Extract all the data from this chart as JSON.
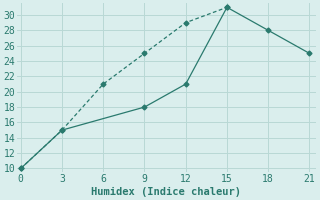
{
  "line1_x": [
    0,
    3,
    6,
    9,
    12,
    15
  ],
  "line1_y": [
    10,
    15,
    21,
    25,
    29,
    31
  ],
  "line2_x": [
    0,
    3,
    9,
    12,
    15,
    18,
    21
  ],
  "line2_y": [
    10,
    15,
    18,
    21,
    31,
    28,
    25
  ],
  "xlim": [
    -0.3,
    21.5
  ],
  "ylim": [
    9.5,
    31.5
  ],
  "xticks": [
    0,
    3,
    6,
    9,
    12,
    15,
    18,
    21
  ],
  "yticks": [
    10,
    12,
    14,
    16,
    18,
    20,
    22,
    24,
    26,
    28,
    30
  ],
  "xlabel": "Humidex (Indice chaleur)",
  "line_color": "#2a7a6e",
  "bg_color": "#daeeed",
  "grid_color": "#b8d8d5",
  "marker": "D",
  "marker_size": 2.5,
  "linewidth": 0.9,
  "xlabel_fontsize": 7.5,
  "tick_fontsize": 7
}
